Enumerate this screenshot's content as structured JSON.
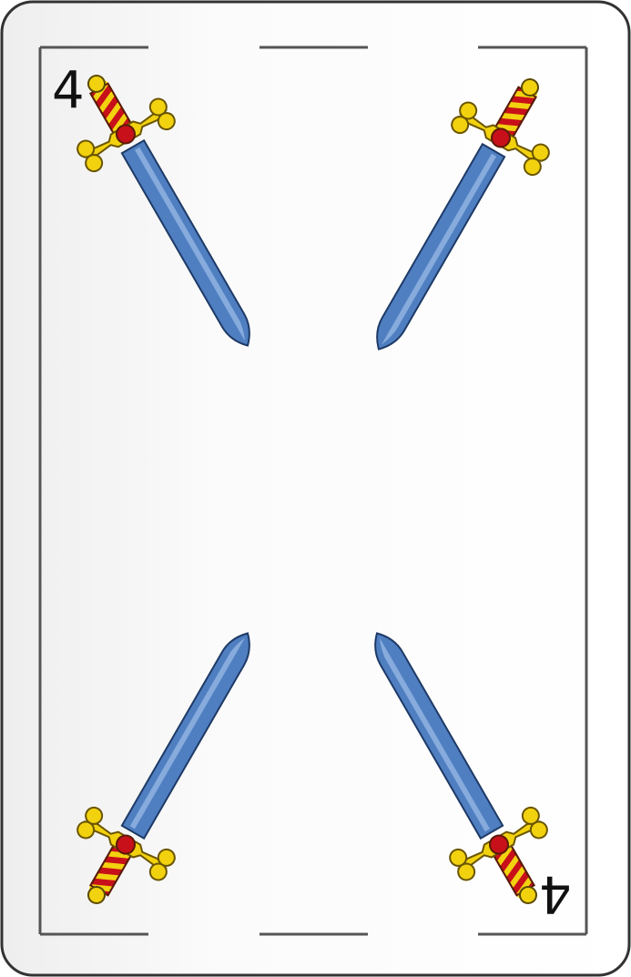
{
  "card": {
    "suit": "swords",
    "rank": "4",
    "index_top": "4",
    "index_bottom": "4",
    "pip_count": 4
  },
  "colors": {
    "blade": "#4f7fc1",
    "blade_light": "#7fa6d9",
    "guard": "#f2d20f",
    "grip_red": "#c8101a",
    "grip_yellow": "#f2d20f",
    "border": "#555555",
    "card_bg": "#fbfbfb",
    "card_edge": "#333333"
  }
}
